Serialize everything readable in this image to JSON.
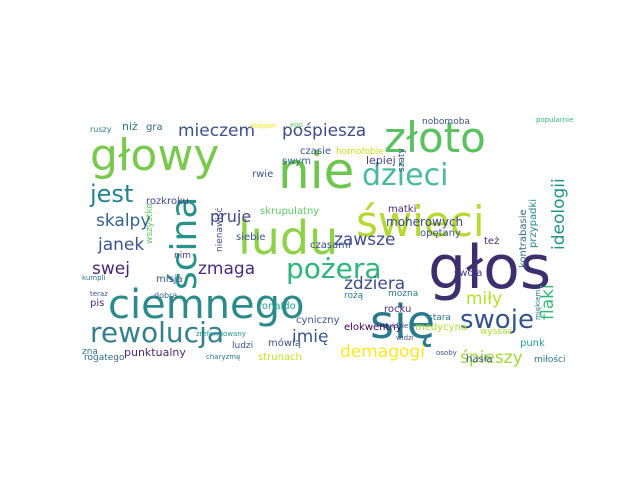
{
  "words": [
    {
      "text": "głos",
      "color": "#3b2f6e"
    },
    {
      "text": "ciemnego",
      "color": "#2c8a8a"
    },
    {
      "text": "głowy",
      "color": "#7ac94f"
    },
    {
      "text": "nie",
      "color": "#6fc64e"
    },
    {
      "text": "złoto",
      "color": "#5bc060"
    },
    {
      "text": "świeci",
      "color": "#b4d932"
    },
    {
      "text": "się",
      "color": "#2a7a8e"
    },
    {
      "text": "ludu",
      "color": "#8fd24a"
    },
    {
      "text": "dzieci",
      "color": "#4bb8a0"
    },
    {
      "text": "rewolucja",
      "color": "#36808d"
    },
    {
      "text": "ścina",
      "color": "#27928a"
    },
    {
      "text": "pożera",
      "color": "#2fb47c"
    },
    {
      "text": "swoje",
      "color": "#34558a"
    },
    {
      "text": "jest",
      "color": "#26828e"
    },
    {
      "text": "mieczem",
      "color": "#3b528b"
    },
    {
      "text": "pośpiesza",
      "color": "#3e4c8a"
    },
    {
      "text": "skalpy",
      "color": "#33638d"
    },
    {
      "text": "janek",
      "color": "#3a548c"
    },
    {
      "text": "pruje",
      "color": "#3e4a89"
    },
    {
      "text": "zmaga",
      "color": "#472d7b"
    },
    {
      "text": "zawsze",
      "color": "#3d4e8a"
    },
    {
      "text": "zdziera",
      "color": "#3d4d8a"
    },
    {
      "text": "miły",
      "color": "#b5de2b"
    },
    {
      "text": "swej",
      "color": "#482475"
    },
    {
      "text": "imię",
      "color": "#39568c"
    },
    {
      "text": "demagogi",
      "color": "#fde725"
    },
    {
      "text": "śpieszy",
      "color": "#a0da39"
    },
    {
      "text": "flaki",
      "color": "#35b779"
    },
    {
      "text": "ideologii",
      "color": "#21918c"
    },
    {
      "text": "moherowych",
      "color": "#3e4989"
    },
    {
      "text": "rozkroku",
      "color": "#3f4788"
    },
    {
      "text": "skrupulatny",
      "color": "#5ec962"
    },
    {
      "text": "czasami",
      "color": "#3f4889"
    },
    {
      "text": "siebie",
      "color": "#3a548c"
    },
    {
      "text": "nienawiść",
      "color": "#3e4989"
    },
    {
      "text": "ronaldo",
      "color": "#20a486"
    },
    {
      "text": "cyniczny",
      "color": "#3b528b"
    },
    {
      "text": "elokwentny",
      "color": "#440154"
    },
    {
      "text": "medycyna",
      "color": "#addc30"
    },
    {
      "text": "punktualny",
      "color": "#482878"
    },
    {
      "text": "strunach",
      "color": "#c2df23"
    },
    {
      "text": "mówią",
      "color": "#3b528b"
    },
    {
      "text": "rocku",
      "color": "#46327e"
    },
    {
      "text": "opętany",
      "color": "#3b528b"
    },
    {
      "text": "mozna",
      "color": "#2a788e"
    },
    {
      "text": "swoja",
      "color": "#443983"
    },
    {
      "text": "kontrabasie",
      "color": "#31688e"
    },
    {
      "text": "przypadki",
      "color": "#25858e"
    },
    {
      "text": "też",
      "color": "#482878"
    },
    {
      "text": "punk",
      "color": "#1f9a8a"
    },
    {
      "text": "hasła",
      "color": "#3b528b"
    },
    {
      "text": "miłości",
      "color": "#2a788e"
    },
    {
      "text": "matki",
      "color": "#482878"
    },
    {
      "text": "stara",
      "color": "#2a788e"
    },
    {
      "text": "lepiej",
      "color": "#443983"
    },
    {
      "text": "homofobie",
      "color": "#c8e020"
    },
    {
      "text": "czasie",
      "color": "#3b528b"
    },
    {
      "text": "swym",
      "color": "#31688e"
    },
    {
      "text": "rwie",
      "color": "#3b528b"
    },
    {
      "text": "szaty",
      "color": "#3b528b"
    },
    {
      "text": "nobomoba",
      "color": "#3b528b"
    },
    {
      "text": "niż",
      "color": "#2a788e"
    },
    {
      "text": "gra",
      "color": "#31688e"
    },
    {
      "text": "misja",
      "color": "#3b528b"
    },
    {
      "text": "nim",
      "color": "#443983"
    },
    {
      "text": "pis",
      "color": "#482878"
    },
    {
      "text": "zna",
      "color": "#2a788e"
    },
    {
      "text": "wszystko",
      "color": "#5ec962"
    },
    {
      "text": "ludzi",
      "color": "#3b528b"
    },
    {
      "text": "rożą",
      "color": "#2a788e"
    },
    {
      "text": "rogatego",
      "color": "#31688e"
    },
    {
      "text": "wyssać",
      "color": "#addc30"
    },
    {
      "text": "widzi",
      "color": "#3b528b"
    },
    {
      "text": "idzie",
      "color": "#3b528b"
    },
    {
      "text": "ruszy",
      "color": "#2a788e"
    },
    {
      "text": "dobra",
      "color": "#31688e"
    },
    {
      "text": "kumpli",
      "color": "#2a788e"
    },
    {
      "text": "teraz",
      "color": "#3b528b"
    },
    {
      "text": "charyzmę",
      "color": "#2a788e"
    },
    {
      "text": "osoby",
      "color": "#3b528b"
    },
    {
      "text": "miękiem",
      "color": "#2a788e"
    },
    {
      "text": "popularnie",
      "color": "#35b779"
    },
    {
      "text": "stepper",
      "color": "#fde725"
    },
    {
      "text": "ego",
      "color": "#5ec962"
    },
    {
      "text": "zreformowany",
      "color": "#21918c"
    }
  ]
}
